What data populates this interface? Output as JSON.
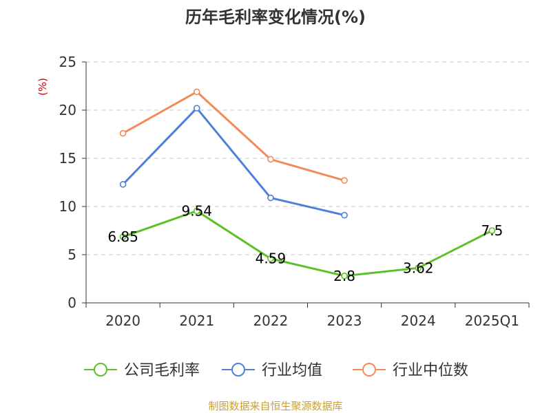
{
  "chart_data": {
    "type": "line",
    "title": "历年毛利率变化情况(%)",
    "ylabel": "(%)",
    "categories": [
      "2020",
      "2021",
      "2022",
      "2023",
      "2024",
      "2025Q1"
    ],
    "ylim": [
      0,
      25
    ],
    "yticks": [
      "0",
      "5",
      "10",
      "15",
      "20",
      "25"
    ],
    "grid": true,
    "legend_position": "bottom",
    "series": [
      {
        "name": "公司毛利率",
        "color": "#5cc127",
        "values": [
          6.85,
          9.54,
          4.59,
          2.8,
          3.62,
          7.5
        ],
        "labels": [
          "6.85",
          "9.54",
          "4.59",
          "2.8",
          "3.62",
          "7.5"
        ]
      },
      {
        "name": "行业均值",
        "color": "#4e7fdd",
        "values": [
          12.3,
          20.2,
          10.9,
          9.1,
          null,
          null
        ]
      },
      {
        "name": "行业中位数",
        "color": "#f28b57",
        "values": [
          17.6,
          21.9,
          14.9,
          12.7,
          null,
          null
        ]
      }
    ]
  },
  "source": "制图数据来自恒生聚源数据库"
}
